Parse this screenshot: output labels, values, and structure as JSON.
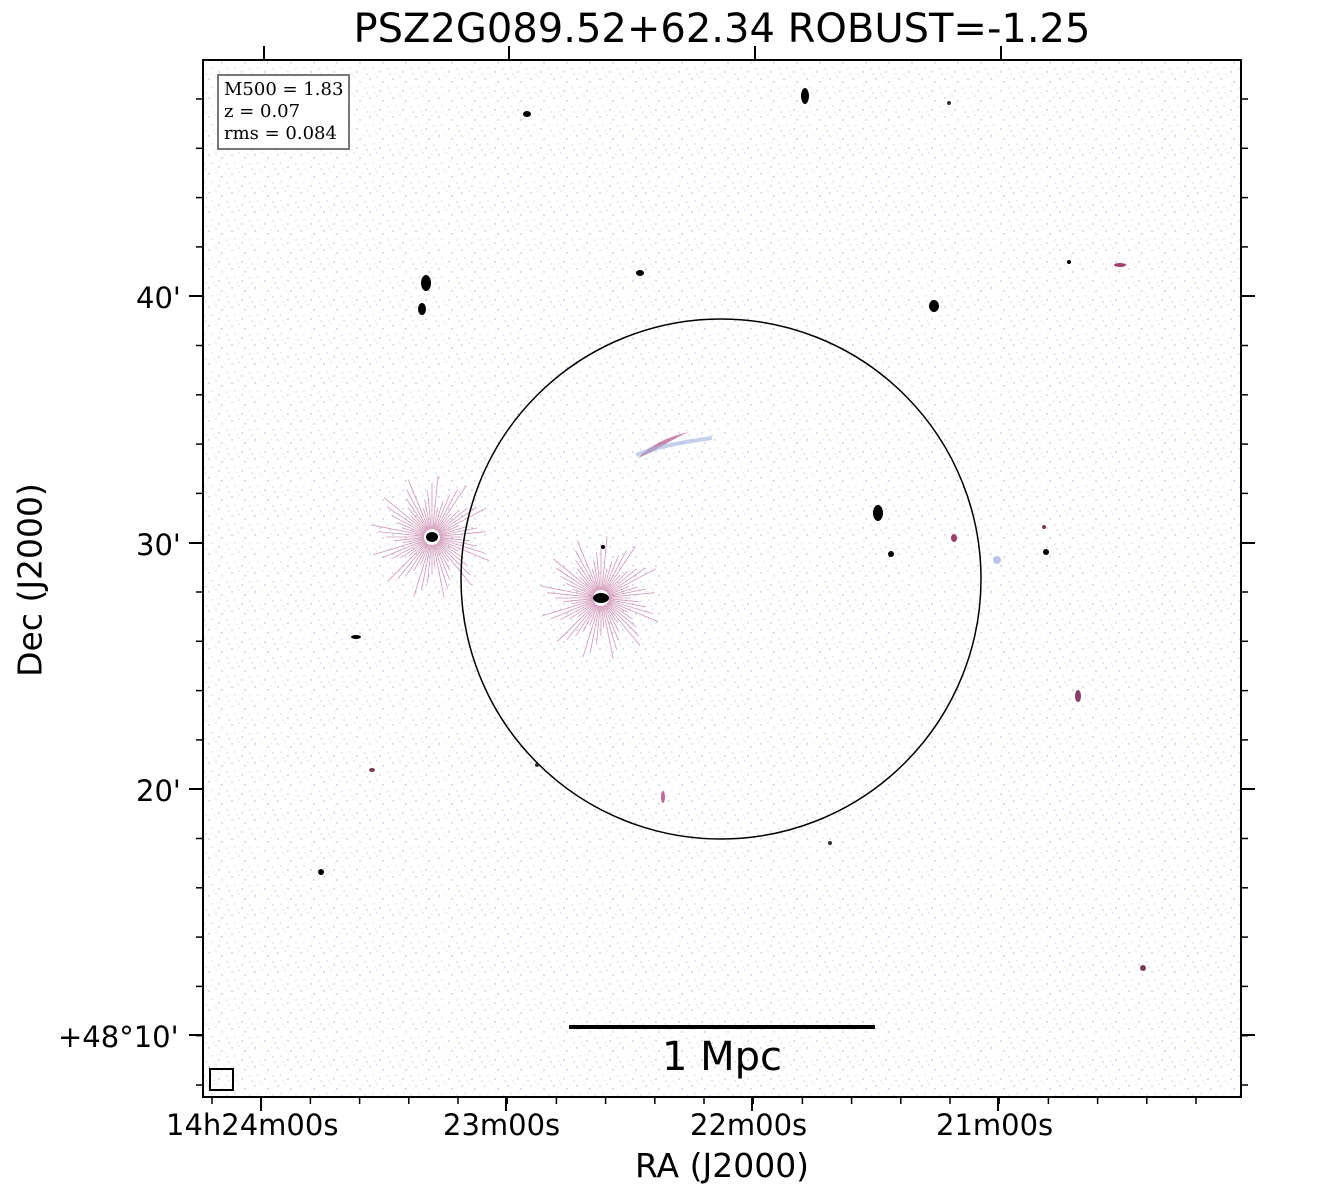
{
  "title": "PSZ2G089.52+62.34 ROBUST=-1.25",
  "axes": {
    "xlabel": "RA (J2000)",
    "ylabel": "Dec (J2000)",
    "x_ticks": [
      "14h24m00s",
      "23m00s",
      "22m00s",
      "21m00s"
    ],
    "y_ticks": [
      "40'",
      "30'",
      "20'",
      "+48°10'"
    ]
  },
  "info_box": {
    "lines": [
      "M500 = 1.83",
      "z = 0.07",
      "rms = 0.084"
    ]
  },
  "scale_bar": {
    "label": "1 Mpc"
  },
  "colors": {
    "noise": "#8da3d8",
    "emission": "#c06a9a",
    "core": "#000000",
    "frame": "#000000"
  }
}
